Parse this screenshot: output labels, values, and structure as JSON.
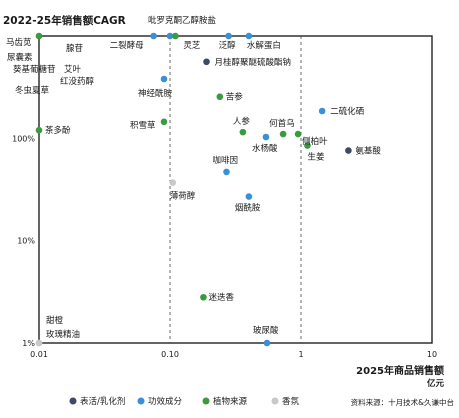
{
  "chart_data": {
    "type": "scatter",
    "title": "",
    "ylabel": "2022-25年销售额CAGR",
    "xlabel": "2025年商品销售额",
    "xunit": "亿元",
    "xscale": "log",
    "yscale": "log",
    "xlim": [
      0.01,
      10
    ],
    "ylim": [
      0.01,
      10
    ],
    "xticks": [
      {
        "v": 0.01,
        "label": "0.01"
      },
      {
        "v": 0.1,
        "label": "0.10"
      },
      {
        "v": 1,
        "label": "1"
      },
      {
        "v": 10,
        "label": "10"
      }
    ],
    "yticks": [
      {
        "v": 0.01,
        "label": "1%"
      },
      {
        "v": 0.1,
        "label": "10%"
      },
      {
        "v": 1,
        "label": "100%"
      }
    ],
    "source": "资料来源：十月技术&久谦中台",
    "legend_position": "bottom",
    "series": [
      {
        "name": "表活/乳化剂",
        "color": "#3b4a66",
        "points": [
          {
            "label": "月桂醇聚醚硫酸酯钠",
            "x": 0.19,
            "y": 5.6
          },
          {
            "label": "氨基酸",
            "x": 2.3,
            "y": 0.76
          }
        ]
      },
      {
        "name": "功效成分",
        "color": "#3a8fd9",
        "points": [
          {
            "label": "吡罗克酮乙醇胺盐",
            "x": 0.1,
            "y": 10
          },
          {
            "label": "二裂酵母",
            "x": 0.075,
            "y": 10
          },
          {
            "label": "泛醇",
            "x": 0.28,
            "y": 10
          },
          {
            "label": "水解蛋白",
            "x": 0.4,
            "y": 10
          },
          {
            "label": "神经酰胺",
            "x": 0.09,
            "y": 3.8
          },
          {
            "label": "二硫化硒",
            "x": 1.45,
            "y": 1.85
          },
          {
            "label": "水杨酸",
            "x": 0.54,
            "y": 1.03
          },
          {
            "label": "咖啡因",
            "x": 0.27,
            "y": 0.47
          },
          {
            "label": "烟酰胺",
            "x": 0.4,
            "y": 0.27
          },
          {
            "label": "玻尿酸",
            "x": 0.55,
            "y": 0.01
          }
        ]
      },
      {
        "name": "植物来源",
        "color": "#3a9a3e",
        "points": [
          {
            "label": "马齿苋",
            "x": 0.01,
            "y": 10
          },
          {
            "label": "灵芝",
            "x": 0.11,
            "y": 10
          },
          {
            "label": "苦参",
            "x": 0.24,
            "y": 2.55
          },
          {
            "label": "积雪草",
            "x": 0.09,
            "y": 1.45
          },
          {
            "label": "人参",
            "x": 0.36,
            "y": 1.15
          },
          {
            "label": "何首乌",
            "x": 0.73,
            "y": 1.1
          },
          {
            "label": "侧柏叶",
            "x": 0.95,
            "y": 1.1
          },
          {
            "label": "生姜",
            "x": 1.12,
            "y": 0.85
          },
          {
            "label": "茶多酚",
            "x": 0.01,
            "y": 1.2
          },
          {
            "label": "迷迭香",
            "x": 0.18,
            "y": 0.028
          }
        ]
      },
      {
        "name": "香氛",
        "color": "#c8c8c8",
        "points": [
          {
            "label": "薄荷醇",
            "x": 0.105,
            "y": 0.37
          },
          {
            "label": "甜橙",
            "x": 0.01,
            "y": 0.01
          },
          {
            "label": "玫瑰精油",
            "x": 0.01,
            "y": 0.01
          }
        ]
      }
    ],
    "annotations": [
      "尿囊素",
      "葵基葡糖苷",
      "艾叶",
      "红没药醇",
      "冬虫夏草",
      "腺苷"
    ]
  }
}
